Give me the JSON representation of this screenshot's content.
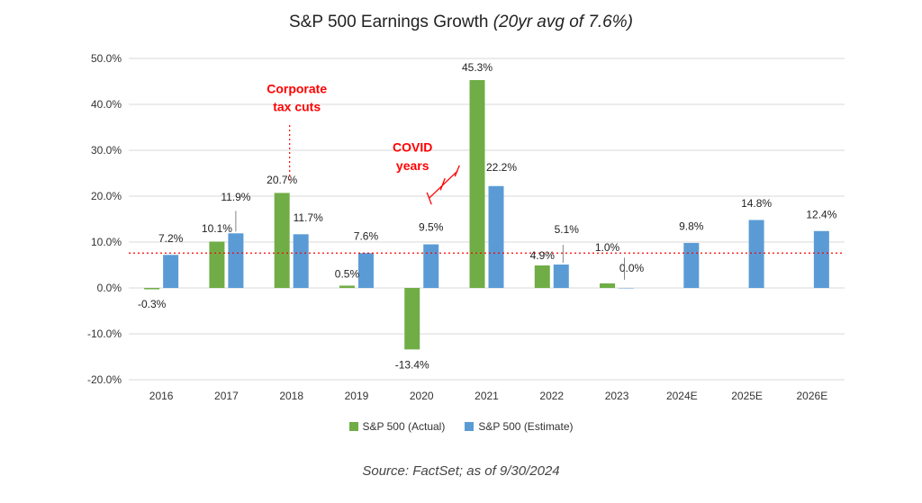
{
  "chart_data": {
    "type": "bar",
    "title": "S&P 500 Earnings Growth",
    "title_note": "(20yr avg of 7.6%)",
    "categories": [
      "2016",
      "2017",
      "2018",
      "2019",
      "2020",
      "2021",
      "2022",
      "2023",
      "2024E",
      "2025E",
      "2026E"
    ],
    "series": [
      {
        "name": "S&P 500 (Actual)",
        "color": "#70ad47",
        "values": [
          -0.3,
          10.1,
          20.7,
          0.5,
          -13.4,
          45.3,
          4.9,
          1.0,
          null,
          null,
          null
        ],
        "labels": [
          "-0.3%",
          "10.1%",
          "20.7%",
          "0.5%",
          "-13.4%",
          "45.3%",
          "4.9%",
          "1.0%",
          null,
          null,
          null
        ]
      },
      {
        "name": "S&P 500 (Estimate)",
        "color": "#5b9bd5",
        "values": [
          7.2,
          11.9,
          11.7,
          7.6,
          9.5,
          22.2,
          5.1,
          0.0,
          9.8,
          14.8,
          12.4
        ],
        "labels": [
          "7.2%",
          "11.9%",
          "11.7%",
          "7.6%",
          "9.5%",
          "22.2%",
          "5.1%",
          "0.0%",
          "9.8%",
          "14.8%",
          "12.4%"
        ]
      }
    ],
    "yticks": [
      50,
      40,
      30,
      20,
      10,
      0,
      -10,
      -20
    ],
    "ytick_labels": [
      "50.0%",
      "40.0%",
      "30.0%",
      "20.0%",
      "10.0%",
      "0.0%",
      "-10.0%",
      "-20.0%"
    ],
    "ylim": [
      -20,
      50
    ],
    "grid": true,
    "reference_line": {
      "value": 7.6,
      "color": "#ff0000",
      "style": "dotted"
    },
    "annotations": [
      {
        "lines": [
          "Corporate",
          "tax cuts"
        ],
        "category": "2018"
      },
      {
        "lines": [
          "COVID",
          "years"
        ],
        "category": "2020"
      }
    ],
    "legend_position": "bottom-center",
    "source": "Source: FactSet; as of 9/30/2024"
  }
}
